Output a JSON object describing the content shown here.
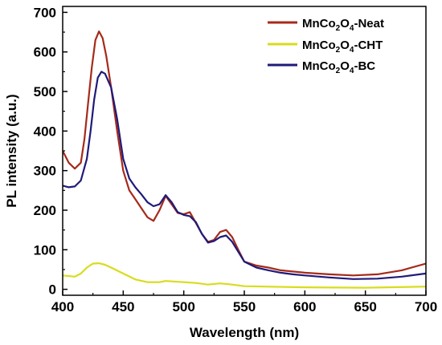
{
  "chart_data": {
    "type": "line",
    "xlabel": "Wavelength (nm)",
    "ylabel": "PL intensity (a.u.)",
    "xlim": [
      400,
      700
    ],
    "ylim": [
      -15,
      715
    ],
    "xticks": [
      "400",
      "450",
      "500",
      "550",
      "600",
      "650",
      "700"
    ],
    "yticks": [
      "0",
      "100",
      "200",
      "300",
      "400",
      "500",
      "600",
      "700"
    ],
    "grid": false,
    "legend_position": "top-right",
    "series": [
      {
        "name": "MnCo2O4-Neat",
        "legend": {
          "base": "MnCo",
          "sub1": "2",
          "mid": "O",
          "sub2": "4",
          "suffix": "-Neat"
        },
        "color": "#a52a1a",
        "x": [
          400,
          405,
          410,
          415,
          418,
          421,
          424,
          427,
          430,
          433,
          436,
          440,
          445,
          450,
          455,
          460,
          465,
          470,
          475,
          480,
          485,
          490,
          495,
          500,
          505,
          510,
          515,
          520,
          525,
          530,
          535,
          540,
          545,
          550,
          560,
          570,
          580,
          590,
          600,
          620,
          640,
          660,
          680,
          700
        ],
        "y": [
          350,
          320,
          305,
          320,
          380,
          470,
          560,
          630,
          652,
          635,
          590,
          510,
          400,
          300,
          250,
          228,
          205,
          182,
          173,
          200,
          236,
          215,
          193,
          190,
          195,
          168,
          140,
          120,
          125,
          145,
          150,
          132,
          100,
          70,
          60,
          55,
          48,
          45,
          42,
          38,
          35,
          38,
          48,
          65
        ]
      },
      {
        "name": "MnCo2O4-CHT",
        "legend": {
          "base": "MnCo",
          "sub1": "2",
          "mid": "O",
          "sub2": "4",
          "suffix": "-CHT"
        },
        "color": "#d9dc1c",
        "x": [
          400,
          410,
          415,
          420,
          425,
          430,
          435,
          440,
          450,
          460,
          470,
          480,
          485,
          490,
          500,
          510,
          520,
          530,
          540,
          550,
          600,
          650,
          700
        ],
        "y": [
          35,
          32,
          40,
          55,
          65,
          66,
          62,
          55,
          40,
          25,
          18,
          18,
          21,
          20,
          18,
          16,
          12,
          15,
          12,
          8,
          5,
          4,
          7
        ]
      },
      {
        "name": "MnCo2O4-BC",
        "legend": {
          "base": "MnCo",
          "sub1": "2",
          "mid": "O",
          "sub2": "4",
          "suffix": "-BC"
        },
        "color": "#1f1a7a",
        "x": [
          400,
          405,
          410,
          415,
          420,
          423,
          426,
          429,
          432,
          435,
          440,
          445,
          450,
          455,
          460,
          465,
          470,
          475,
          480,
          485,
          490,
          495,
          500,
          505,
          510,
          515,
          520,
          525,
          530,
          535,
          540,
          545,
          550,
          560,
          570,
          580,
          590,
          600,
          620,
          640,
          660,
          680,
          700
        ],
        "y": [
          262,
          258,
          260,
          275,
          330,
          400,
          480,
          535,
          550,
          545,
          510,
          430,
          330,
          280,
          258,
          240,
          220,
          210,
          215,
          238,
          220,
          195,
          188,
          185,
          170,
          140,
          118,
          122,
          132,
          136,
          120,
          95,
          70,
          55,
          48,
          42,
          38,
          35,
          30,
          26,
          27,
          32,
          40
        ]
      }
    ]
  }
}
